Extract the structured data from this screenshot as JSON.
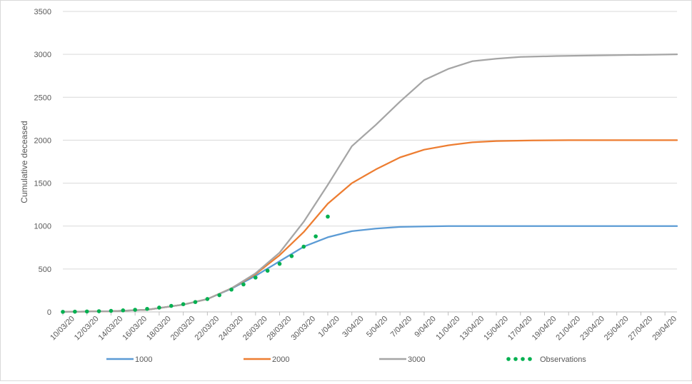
{
  "chart_data": {
    "type": "line",
    "ylabel": "Cumulative deceased",
    "ylim": [
      0,
      3500
    ],
    "yticks": [
      "0",
      "500",
      "1000",
      "1500",
      "2000",
      "2500",
      "3000",
      "3500"
    ],
    "ytick_values": [
      0,
      500,
      1000,
      1500,
      2000,
      2500,
      3000,
      3500
    ],
    "x_start": "10/03/20",
    "x_end": "30/04/20",
    "xtick_labels": [
      "10/03/20",
      "12/03/20",
      "14/03/20",
      "16/03/20",
      "18/03/20",
      "20/03/20",
      "22/03/20",
      "24/03/20",
      "26/03/20",
      "28/03/20",
      "30/03/20",
      "1/04/20",
      "3/04/20",
      "5/04/20",
      "7/04/20",
      "9/04/20",
      "11/04/20",
      "13/04/20",
      "15/04/20",
      "17/04/20",
      "19/04/20",
      "21/04/20",
      "23/04/20",
      "25/04/20",
      "27/04/20",
      "29/04/20"
    ],
    "grid": true,
    "legend_position": "bottom",
    "series": [
      {
        "name": "1000",
        "color": "#5b9bd5",
        "style": "line",
        "x": [
          "10/03/20",
          "14/03/20",
          "17/03/20",
          "20/03/20",
          "22/03/20",
          "24/03/20",
          "26/03/20",
          "28/03/20",
          "30/03/20",
          "1/04/20",
          "3/04/20",
          "5/04/20",
          "7/04/20",
          "9/04/20",
          "11/04/20",
          "14/04/20",
          "20/04/20",
          "30/04/20"
        ],
        "y": [
          0,
          8,
          25,
          85,
          150,
          270,
          420,
          590,
          760,
          870,
          940,
          970,
          990,
          996,
          999,
          1000,
          1000,
          1000
        ]
      },
      {
        "name": "2000",
        "color": "#ed7d31",
        "style": "line",
        "x": [
          "10/03/20",
          "14/03/20",
          "17/03/20",
          "20/03/20",
          "22/03/20",
          "24/03/20",
          "26/03/20",
          "28/03/20",
          "30/03/20",
          "1/04/20",
          "3/04/20",
          "5/04/20",
          "7/04/20",
          "9/04/20",
          "11/04/20",
          "13/04/20",
          "15/04/20",
          "18/04/20",
          "21/04/20",
          "30/04/20"
        ],
        "y": [
          0,
          8,
          25,
          85,
          150,
          275,
          440,
          660,
          930,
          1260,
          1500,
          1660,
          1800,
          1890,
          1940,
          1975,
          1990,
          1997,
          2000,
          2000
        ]
      },
      {
        "name": "3000",
        "color": "#a5a5a5",
        "style": "line",
        "x": [
          "10/03/20",
          "14/03/20",
          "17/03/20",
          "20/03/20",
          "22/03/20",
          "24/03/20",
          "26/03/20",
          "28/03/20",
          "30/03/20",
          "1/04/20",
          "3/04/20",
          "5/04/20",
          "7/04/20",
          "9/04/20",
          "11/04/20",
          "13/04/20",
          "15/04/20",
          "17/04/20",
          "20/04/20",
          "25/04/20",
          "30/04/20"
        ],
        "y": [
          0,
          8,
          25,
          85,
          150,
          275,
          450,
          690,
          1050,
          1480,
          1930,
          2180,
          2450,
          2700,
          2830,
          2920,
          2950,
          2970,
          2980,
          2990,
          3000
        ]
      },
      {
        "name": "Observations",
        "color": "#00b050",
        "style": "dots",
        "x": [
          "10/03/20",
          "11/03/20",
          "12/03/20",
          "13/03/20",
          "14/03/20",
          "15/03/20",
          "16/03/20",
          "17/03/20",
          "18/03/20",
          "19/03/20",
          "20/03/20",
          "21/03/20",
          "22/03/20",
          "23/03/20",
          "24/03/20",
          "25/03/20",
          "26/03/20",
          "27/03/20",
          "28/03/20",
          "29/03/20",
          "30/03/20",
          "31/03/20",
          "1/04/20"
        ],
        "y": [
          1,
          3,
          5,
          8,
          12,
          18,
          25,
          35,
          50,
          70,
          90,
          115,
          150,
          195,
          260,
          320,
          400,
          480,
          560,
          650,
          760,
          880,
          1110
        ]
      }
    ]
  }
}
